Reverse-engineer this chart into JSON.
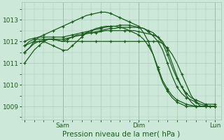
{
  "bg_color": "#cce8d8",
  "grid_color": "#aacabb",
  "line_color": "#1a5c1a",
  "xlabel": "Pression niveau de la mer( hPa )",
  "xlabel_fontsize": 7.5,
  "tick_fontsize": 6.5,
  "yticks": [
    1009,
    1010,
    1011,
    1012,
    1013
  ],
  "ylim": [
    1008.4,
    1013.8
  ],
  "xtick_labels": [
    "",
    "Sam",
    "",
    "Dim",
    "",
    "Lun"
  ],
  "xtick_positions": [
    0,
    24,
    48,
    72,
    96,
    120
  ],
  "xlim": [
    -2,
    124
  ],
  "series": [
    {
      "x": [
        0,
        3,
        6,
        9,
        12,
        15,
        18,
        21,
        24,
        27,
        30,
        33,
        36,
        39,
        42,
        45,
        48,
        51,
        54,
        57,
        60,
        63,
        66,
        69,
        72,
        75,
        78,
        81,
        84,
        87,
        90,
        93,
        96,
        99,
        102,
        105,
        108,
        111,
        114,
        117,
        120
      ],
      "y": [
        1011.5,
        1011.7,
        1011.9,
        1012.0,
        1012.05,
        1012.1,
        1012.1,
        1012.05,
        1012.0,
        1012.0,
        1012.0,
        1012.0,
        1012.0,
        1012.0,
        1012.0,
        1012.0,
        1012.0,
        1012.0,
        1012.0,
        1012.0,
        1012.0,
        1012.0,
        1012.0,
        1012.0,
        1012.0,
        1012.0,
        1012.0,
        1012.0,
        1012.0,
        1011.9,
        1011.7,
        1011.4,
        1011.0,
        1010.5,
        1010.0,
        1009.5,
        1009.2,
        1009.0,
        1009.0,
        1009.0,
        1009.0
      ],
      "marker_every": 3
    },
    {
      "x": [
        0,
        3,
        6,
        9,
        12,
        15,
        18,
        21,
        24,
        27,
        30,
        33,
        36,
        39,
        42,
        45,
        48,
        51,
        54,
        57,
        60,
        63,
        66,
        69,
        72,
        75,
        78,
        81,
        84,
        87,
        90,
        93,
        96,
        99,
        102,
        105,
        108,
        111,
        114,
        117,
        120
      ],
      "y": [
        1011.0,
        1011.3,
        1011.6,
        1011.8,
        1012.0,
        1012.1,
        1012.1,
        1012.05,
        1012.0,
        1012.1,
        1012.2,
        1012.3,
        1012.3,
        1012.4,
        1012.4,
        1012.4,
        1012.45,
        1012.5,
        1012.5,
        1012.5,
        1012.5,
        1012.5,
        1012.5,
        1012.5,
        1012.45,
        1012.4,
        1012.35,
        1012.3,
        1012.2,
        1012.0,
        1011.6,
        1011.0,
        1010.4,
        1009.9,
        1009.5,
        1009.2,
        1009.0,
        1009.0,
        1009.0,
        1009.0,
        1009.0
      ],
      "marker_every": 3
    },
    {
      "x": [
        0,
        3,
        6,
        9,
        12,
        15,
        18,
        21,
        24,
        27,
        30,
        33,
        36,
        39,
        42,
        45,
        48,
        51,
        54,
        57,
        60,
        63,
        66,
        69,
        72,
        75,
        78,
        81,
        84,
        87,
        90,
        93,
        96,
        99,
        102,
        105,
        108,
        111,
        114,
        117,
        120
      ],
      "y": [
        1011.8,
        1012.0,
        1012.1,
        1012.1,
        1012.1,
        1012.1,
        1012.1,
        1012.1,
        1012.1,
        1012.15,
        1012.2,
        1012.25,
        1012.3,
        1012.35,
        1012.4,
        1012.45,
        1012.5,
        1012.55,
        1012.6,
        1012.6,
        1012.65,
        1012.65,
        1012.65,
        1012.65,
        1012.65,
        1012.6,
        1012.5,
        1012.4,
        1012.2,
        1011.9,
        1011.4,
        1010.8,
        1010.3,
        1009.9,
        1009.6,
        1009.4,
        1009.3,
        1009.2,
        1009.1,
        1009.1,
        1009.1
      ],
      "marker_every": 2
    },
    {
      "x": [
        0,
        3,
        6,
        9,
        12,
        15,
        18,
        21,
        24,
        27,
        30,
        33,
        36,
        39,
        42,
        45,
        48,
        51,
        54,
        57,
        60,
        63,
        66,
        69,
        72,
        75,
        78,
        81,
        84,
        87,
        90,
        93,
        96,
        99,
        102,
        105,
        108,
        111,
        114,
        117,
        120
      ],
      "y": [
        1012.0,
        1012.1,
        1012.15,
        1012.2,
        1012.2,
        1012.2,
        1012.2,
        1012.2,
        1012.2,
        1012.25,
        1012.3,
        1012.35,
        1012.4,
        1012.45,
        1012.5,
        1012.55,
        1012.6,
        1012.65,
        1012.7,
        1012.7,
        1012.75,
        1012.75,
        1012.75,
        1012.7,
        1012.65,
        1012.6,
        1012.45,
        1012.25,
        1012.0,
        1011.6,
        1011.0,
        1010.4,
        1009.9,
        1009.6,
        1009.4,
        1009.3,
        1009.2,
        1009.1,
        1009.05,
        1009.0,
        1009.0
      ],
      "marker_every": 2
    },
    {
      "x": [
        0,
        3,
        6,
        9,
        12,
        15,
        18,
        21,
        24,
        27,
        30,
        33,
        36,
        39,
        42,
        45,
        48,
        51,
        54,
        57,
        60,
        63,
        66,
        69,
        72,
        75,
        78,
        81,
        84,
        87,
        90,
        93,
        96,
        99,
        102,
        105,
        108,
        111,
        114,
        117,
        120
      ],
      "y": [
        1011.5,
        1011.7,
        1012.0,
        1012.2,
        1012.3,
        1012.4,
        1012.5,
        1012.6,
        1012.7,
        1012.8,
        1012.9,
        1013.0,
        1013.1,
        1013.2,
        1013.25,
        1013.3,
        1013.35,
        1013.35,
        1013.3,
        1013.2,
        1013.1,
        1013.0,
        1012.9,
        1012.8,
        1012.7,
        1012.4,
        1012.0,
        1011.4,
        1010.7,
        1010.1,
        1009.7,
        1009.4,
        1009.2,
        1009.1,
        1009.0,
        1009.0,
        1009.0,
        1009.0,
        1009.0,
        1009.0,
        1009.0
      ],
      "marker_every": 2
    },
    {
      "x": [
        0,
        3,
        6,
        9,
        12,
        15,
        18,
        21,
        24,
        27,
        30,
        33,
        36,
        39,
        42,
        45,
        48,
        51,
        54,
        57,
        60,
        63,
        66,
        69,
        72,
        75,
        78,
        81,
        84,
        87,
        90,
        93,
        96,
        99,
        102,
        105,
        108,
        111,
        114,
        117,
        120
      ],
      "y": [
        1011.8,
        1011.9,
        1012.0,
        1012.0,
        1012.0,
        1011.9,
        1011.8,
        1011.7,
        1011.6,
        1011.6,
        1011.8,
        1012.0,
        1012.2,
        1012.4,
        1012.5,
        1012.6,
        1012.65,
        1012.7,
        1012.7,
        1012.7,
        1012.65,
        1012.6,
        1012.5,
        1012.4,
        1012.3,
        1012.1,
        1011.8,
        1011.4,
        1010.8,
        1010.2,
        1009.8,
        1009.5,
        1009.3,
        1009.2,
        1009.1,
        1009.05,
        1009.0,
        1009.0,
        1009.0,
        1009.0,
        1009.0
      ],
      "marker_every": 2
    }
  ]
}
